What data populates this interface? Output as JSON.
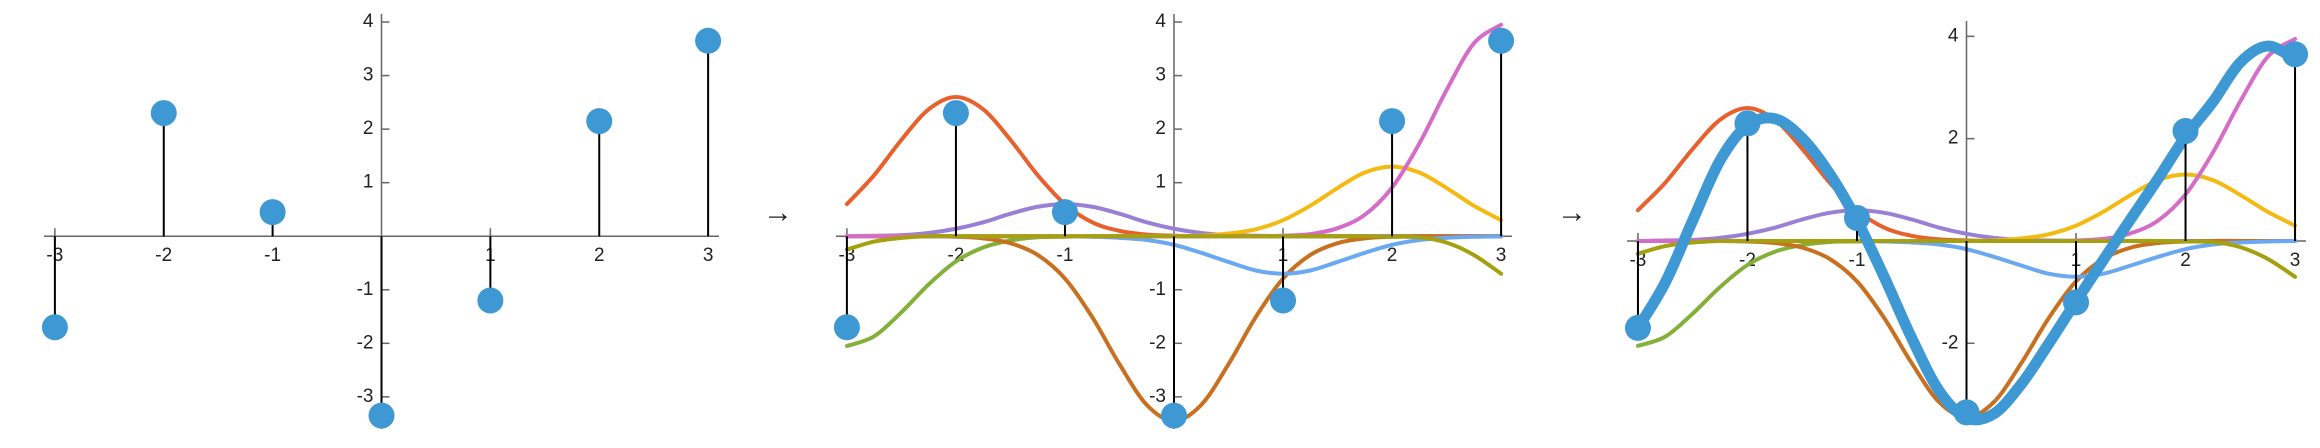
{
  "arrows": [
    "→",
    "→"
  ],
  "chart_data": [
    {
      "type": "stem",
      "x": [
        -3,
        -2,
        -1,
        0,
        1,
        2,
        3
      ],
      "values": [
        -1.7,
        2.3,
        0.45,
        -3.35,
        -1.2,
        2.15,
        3.65
      ],
      "color": "#3d98d3",
      "xlim": [
        -3.1,
        3.1
      ],
      "ylim": [
        -3.6,
        4.15
      ],
      "xticks": [
        -3,
        -2,
        -1,
        1,
        2,
        3
      ],
      "yticks": [
        -3,
        -2,
        -1,
        1,
        2,
        3,
        4
      ]
    },
    {
      "type": "stem",
      "x": [
        -3,
        -2,
        -1,
        0,
        1,
        2,
        3
      ],
      "values": [
        -1.7,
        2.3,
        0.45,
        -3.35,
        -1.2,
        2.15,
        3.65
      ],
      "color": "#3d98d3",
      "xlim": [
        -3.1,
        3.1
      ],
      "ylim": [
        -3.6,
        4.15
      ],
      "xticks": [
        -3,
        -2,
        -1,
        1,
        2,
        3
      ],
      "yticks": [
        -3,
        -2,
        -1,
        1,
        2,
        3,
        4
      ],
      "curves": {
        "x": [
          -3,
          -2.75,
          -2.5,
          -2.25,
          -2,
          -1.75,
          -1.5,
          -1.25,
          -1,
          -0.75,
          -0.5,
          -0.25,
          0,
          0.25,
          0.5,
          0.75,
          1,
          1.25,
          1.5,
          1.75,
          2,
          2.25,
          2.5,
          2.75,
          3
        ],
        "series": [
          {
            "color": "#84b03a",
            "values": [
              -2.05,
              -1.87,
              -1.42,
              -0.9,
              -0.47,
              -0.21,
              -0.08,
              -0.02,
              -0.01,
              0,
              0,
              0,
              0,
              0,
              0,
              0,
              0,
              0,
              0,
              0,
              0,
              0,
              0,
              0,
              0
            ]
          },
          {
            "color": "#e8602c",
            "values": [
              0.6,
              1.14,
              1.8,
              2.37,
              2.6,
              2.37,
              1.8,
              1.14,
              0.6,
              0.26,
              0.1,
              0.03,
              0.01,
              0,
              0,
              0,
              0,
              0,
              0,
              0,
              0,
              0,
              0,
              0,
              0
            ]
          },
          {
            "color": "#9a80d4",
            "values": [
              0,
              0.01,
              0.02,
              0.06,
              0.14,
              0.26,
              0.42,
              0.55,
              0.6,
              0.55,
              0.42,
              0.26,
              0.14,
              0.06,
              0.02,
              0.01,
              0,
              0,
              0,
              0,
              0,
              0,
              0,
              0,
              0
            ]
          },
          {
            "color": "#c8701f",
            "values": [
              0,
              0,
              0,
              0,
              -0.01,
              -0.04,
              -0.13,
              -0.35,
              -0.79,
              -1.51,
              -2.39,
              -3.15,
              -3.45,
              -3.15,
              -2.39,
              -1.51,
              -0.79,
              -0.35,
              -0.13,
              -0.04,
              -0.01,
              0,
              0,
              0,
              0
            ]
          },
          {
            "color": "#6aa8f2",
            "values": [
              0,
              0,
              0,
              0,
              0,
              0,
              0,
              0,
              0,
              -0.01,
              -0.03,
              -0.07,
              -0.16,
              -0.31,
              -0.48,
              -0.64,
              -0.7,
              -0.64,
              -0.48,
              -0.31,
              -0.16,
              -0.07,
              -0.03,
              -0.01,
              0
            ]
          },
          {
            "color": "#f4ba12",
            "values": [
              0,
              0,
              0,
              0,
              0,
              0,
              0,
              0,
              0,
              0,
              0,
              0,
              0,
              0.01,
              0.05,
              0.13,
              0.3,
              0.57,
              0.9,
              1.19,
              1.3,
              1.19,
              0.9,
              0.57,
              0.3
            ]
          },
          {
            "color": "#d46cc8",
            "values": [
              0,
              0,
              0,
              0,
              0,
              0,
              0,
              0,
              0,
              0,
              0,
              0,
              0,
              0,
              0,
              0,
              0.01,
              0.04,
              0.15,
              0.4,
              0.91,
              1.73,
              2.73,
              3.6,
              3.95
            ]
          },
          {
            "color": "#a4a010",
            "values": [
              -0.25,
              -0.1,
              -0.03,
              0,
              0,
              0,
              0,
              0,
              0,
              0,
              0,
              0,
              0,
              0,
              0,
              0,
              0,
              0,
              0,
              0,
              -0.01,
              -0.02,
              -0.12,
              -0.35,
              -0.7
            ]
          }
        ]
      }
    },
    {
      "type": "stem",
      "x": [
        -3,
        -2,
        -1,
        0,
        1,
        2,
        3
      ],
      "values": [
        -1.7,
        2.3,
        0.45,
        -3.35,
        -1.2,
        2.15,
        3.65
      ],
      "color": "#3d98d3",
      "xlim": [
        -3.1,
        3.1
      ],
      "ylim": [
        -3.5,
        4.3
      ],
      "xticks": [
        -3,
        -2,
        -1,
        1,
        2,
        3
      ],
      "yticks": [
        -2,
        2,
        4
      ],
      "curves": {
        "x": [
          -3,
          -2.75,
          -2.5,
          -2.25,
          -2,
          -1.75,
          -1.5,
          -1.25,
          -1,
          -0.75,
          -0.5,
          -0.25,
          0,
          0.25,
          0.5,
          0.75,
          1,
          1.25,
          1.5,
          1.75,
          2,
          2.25,
          2.5,
          2.75,
          3
        ],
        "series": [
          {
            "color": "#84b03a",
            "values": [
              -2.05,
              -1.87,
              -1.42,
              -0.9,
              -0.47,
              -0.21,
              -0.08,
              -0.02,
              -0.01,
              0,
              0,
              0,
              0,
              0,
              0,
              0,
              0,
              0,
              0,
              0,
              0,
              0,
              0,
              0,
              0
            ]
          },
          {
            "color": "#e8602c",
            "values": [
              0.6,
              1.14,
              1.8,
              2.37,
              2.6,
              2.37,
              1.8,
              1.14,
              0.6,
              0.26,
              0.1,
              0.03,
              0.01,
              0,
              0,
              0,
              0,
              0,
              0,
              0,
              0,
              0,
              0,
              0,
              0
            ]
          },
          {
            "color": "#9a80d4",
            "values": [
              0,
              0.01,
              0.02,
              0.06,
              0.14,
              0.26,
              0.42,
              0.55,
              0.6,
              0.55,
              0.42,
              0.26,
              0.14,
              0.06,
              0.02,
              0.01,
              0,
              0,
              0,
              0,
              0,
              0,
              0,
              0,
              0
            ]
          },
          {
            "color": "#c8701f",
            "values": [
              0,
              0,
              0,
              0,
              -0.01,
              -0.04,
              -0.13,
              -0.35,
              -0.79,
              -1.51,
              -2.39,
              -3.15,
              -3.45,
              -3.15,
              -2.39,
              -1.51,
              -0.79,
              -0.35,
              -0.13,
              -0.04,
              -0.01,
              0,
              0,
              0,
              0
            ]
          },
          {
            "color": "#6aa8f2",
            "values": [
              0,
              0,
              0,
              0,
              0,
              0,
              0,
              0,
              0,
              -0.01,
              -0.03,
              -0.07,
              -0.16,
              -0.31,
              -0.48,
              -0.64,
              -0.7,
              -0.64,
              -0.48,
              -0.31,
              -0.16,
              -0.07,
              -0.03,
              -0.01,
              0
            ]
          },
          {
            "color": "#f4ba12",
            "values": [
              0,
              0,
              0,
              0,
              0,
              0,
              0,
              0,
              0,
              0,
              0,
              0,
              0,
              0.01,
              0.05,
              0.13,
              0.3,
              0.57,
              0.9,
              1.19,
              1.3,
              1.19,
              0.9,
              0.57,
              0.3
            ]
          },
          {
            "color": "#d46cc8",
            "values": [
              0,
              0,
              0,
              0,
              0,
              0,
              0,
              0,
              0,
              0,
              0,
              0,
              0,
              0,
              0,
              0,
              0.01,
              0.04,
              0.15,
              0.4,
              0.91,
              1.73,
              2.73,
              3.6,
              3.95
            ]
          },
          {
            "color": "#a4a010",
            "values": [
              -0.25,
              -0.1,
              -0.03,
              0,
              0,
              0,
              0,
              0,
              0,
              0,
              0,
              0,
              0,
              0,
              0,
              0,
              0,
              0,
              0,
              0,
              -0.01,
              -0.02,
              -0.12,
              -0.35,
              -0.7
            ]
          },
          {
            "color": "#3d98d3",
            "width": 11,
            "values": [
              -1.7,
              -0.81,
              0.4,
              1.575,
              2.26,
              2.39,
              2.01,
              1.315,
              0.4,
              -0.71,
              -1.9,
              -2.93,
              -3.46,
              -3.38,
              -2.8,
              -2.01,
              -1.18,
              -0.37,
              0.43,
              1.22,
              2.04,
              2.72,
              3.49,
              3.81,
              3.55
            ]
          }
        ]
      }
    }
  ]
}
